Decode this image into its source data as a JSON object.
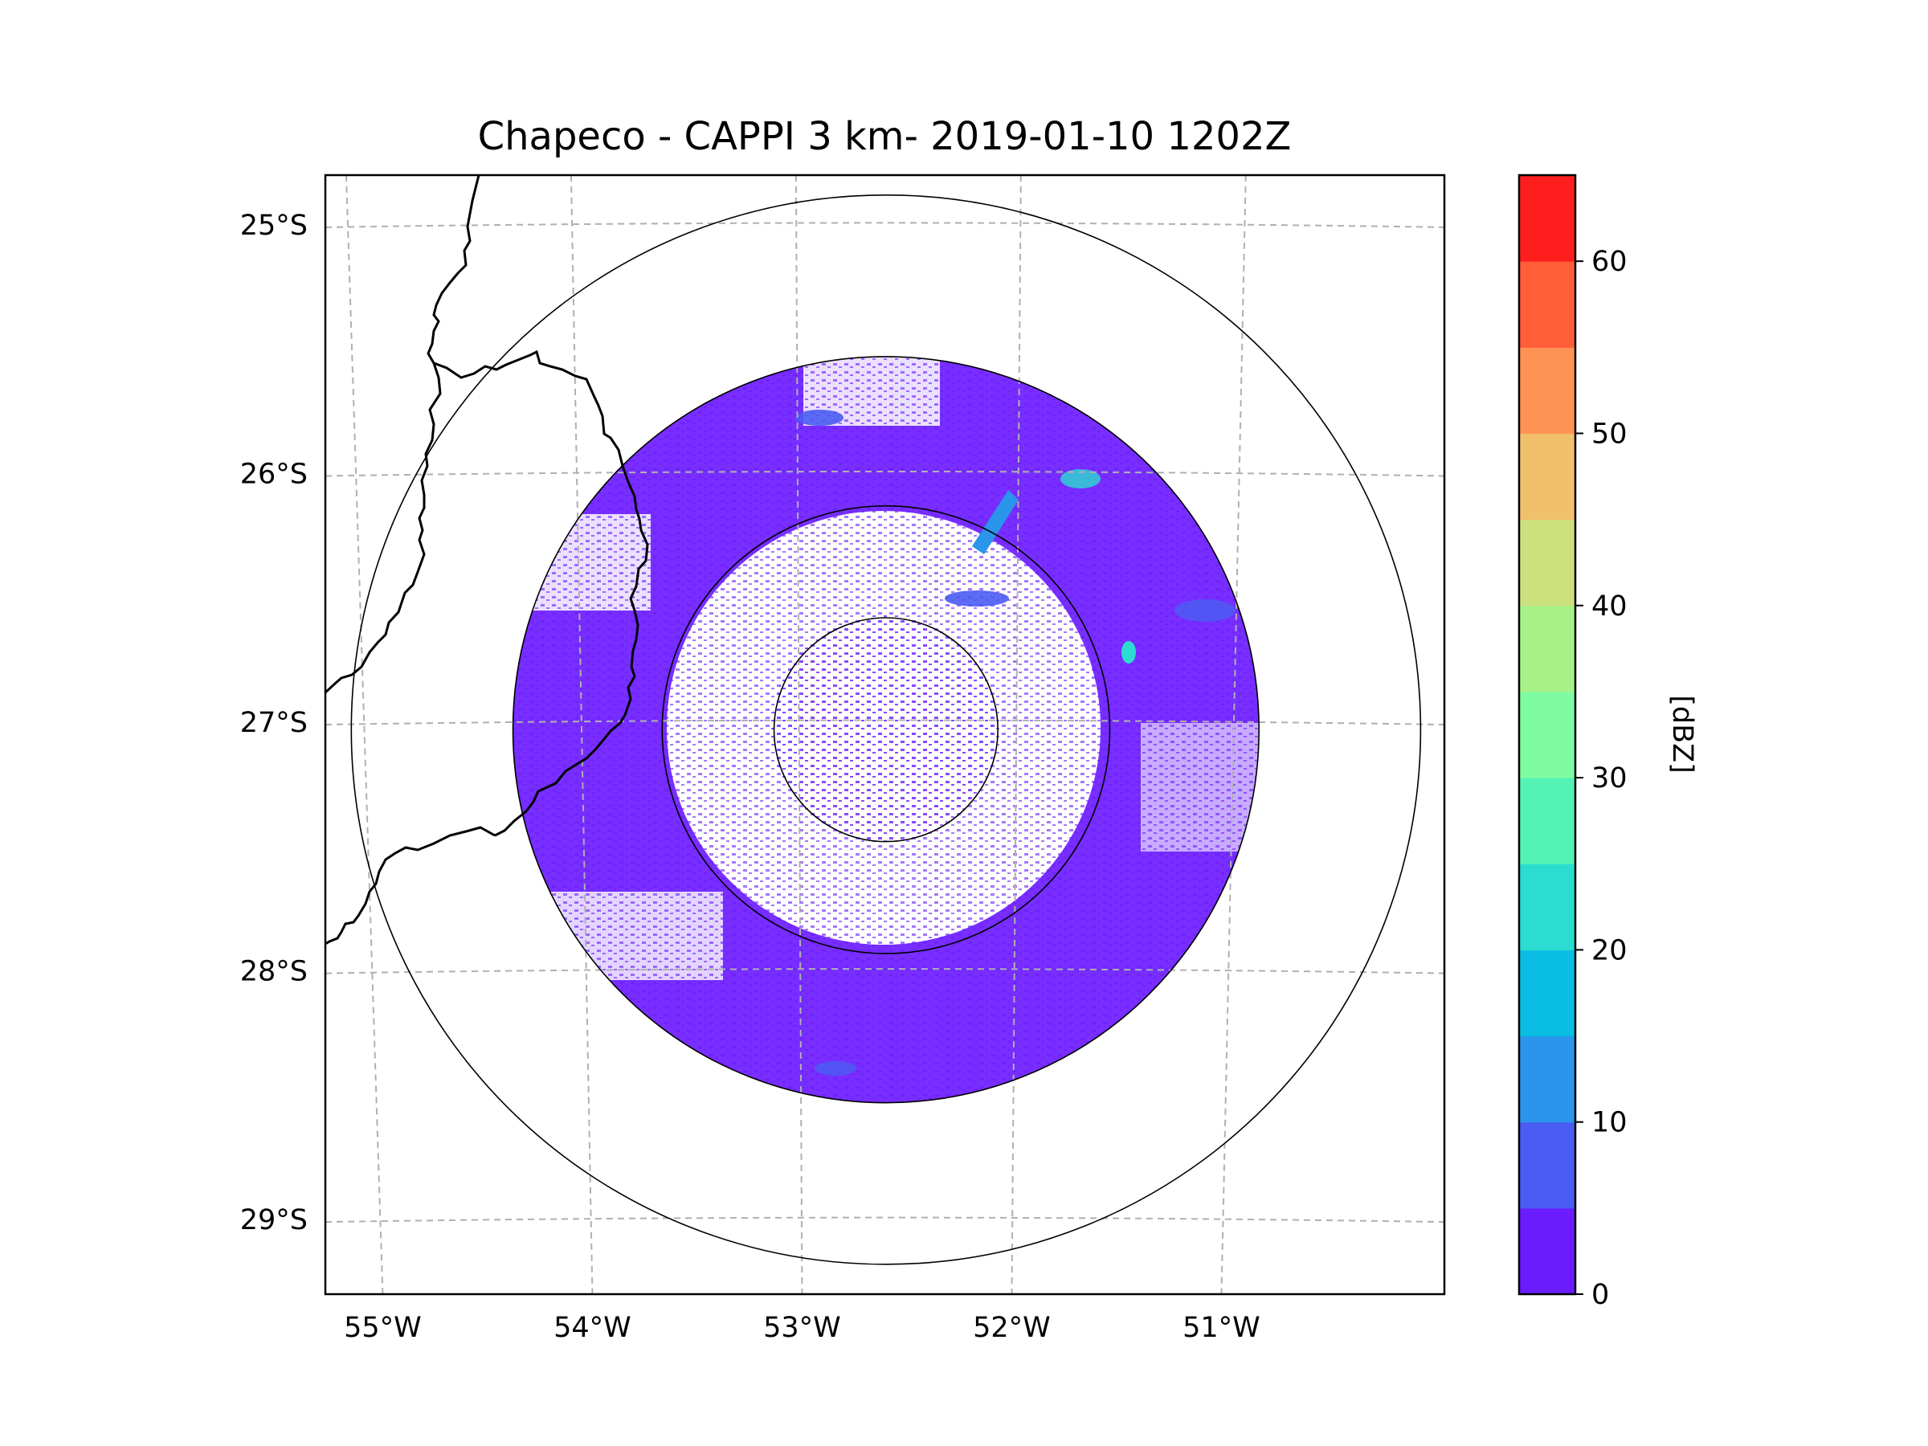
{
  "chart_data": {
    "type": "heatmap",
    "title": "Chapeco - CAPPI 3 km- 2019-01-10 1202Z",
    "map": {
      "lon_ticks": [
        -55,
        -54,
        -53,
        -52,
        -51
      ],
      "lon_labels": [
        "55°W",
        "54°W",
        "53°W",
        "52°W",
        "51°W"
      ],
      "lat_ticks": [
        -25,
        -26,
        -27,
        -28,
        -29
      ],
      "lat_labels": [
        "25°S",
        "26°S",
        "27°S",
        "28°S",
        "29°S"
      ],
      "lon_range": [
        -55.18,
        -50.03
      ],
      "lat_range": [
        -29.3,
        -24.8
      ],
      "gridlines": true,
      "radar_center": [
        -52.6,
        -27.03
      ],
      "range_rings_deg": [
        0.45,
        0.9,
        1.5,
        2.15
      ]
    },
    "colorbar": {
      "label": "[dBZ]",
      "min": 0,
      "max": 65,
      "step": 5,
      "tick_values": [
        0,
        10,
        20,
        30,
        40,
        50,
        60
      ],
      "tick_labels": [
        "0",
        "10",
        "20",
        "30",
        "40",
        "50",
        "60"
      ],
      "colors": [
        "#6b1cff",
        "#4b5cf2",
        "#2a95ea",
        "#0abde2",
        "#2bdcd0",
        "#53f2b6",
        "#7ffca2",
        "#a6f287",
        "#cde07e",
        "#f0c06d",
        "#ff9355",
        "#ff5e39",
        "#ff1e1e"
      ]
    },
    "field_color": "#6b1cff"
  }
}
